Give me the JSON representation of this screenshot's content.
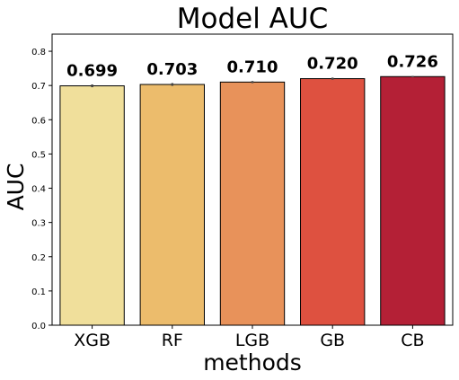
{
  "chart_data": {
    "type": "bar",
    "title": "Model AUC",
    "xlabel": "methods",
    "ylabel": "AUC",
    "categories": [
      "XGB",
      "RF",
      "LGB",
      "GB",
      "CB"
    ],
    "values": [
      0.699,
      0.703,
      0.71,
      0.72,
      0.726
    ],
    "value_labels": [
      "0.699",
      "0.703",
      "0.710",
      "0.720",
      "0.726"
    ],
    "error": [
      0.004,
      0.004,
      0.003,
      0.003,
      0.002
    ],
    "colors": [
      "#f0df9b",
      "#ecbc6c",
      "#e8925a",
      "#de5140",
      "#b42036"
    ],
    "ylim": [
      0,
      0.85
    ],
    "yticks": [
      0.0,
      0.1,
      0.2,
      0.3,
      0.4,
      0.5,
      0.6,
      0.7,
      0.8
    ],
    "ytick_labels": [
      "0.0",
      "0.1",
      "0.2",
      "0.3",
      "0.4",
      "0.5",
      "0.6",
      "0.7",
      "0.8"
    ],
    "grid": false,
    "legend": "none"
  }
}
